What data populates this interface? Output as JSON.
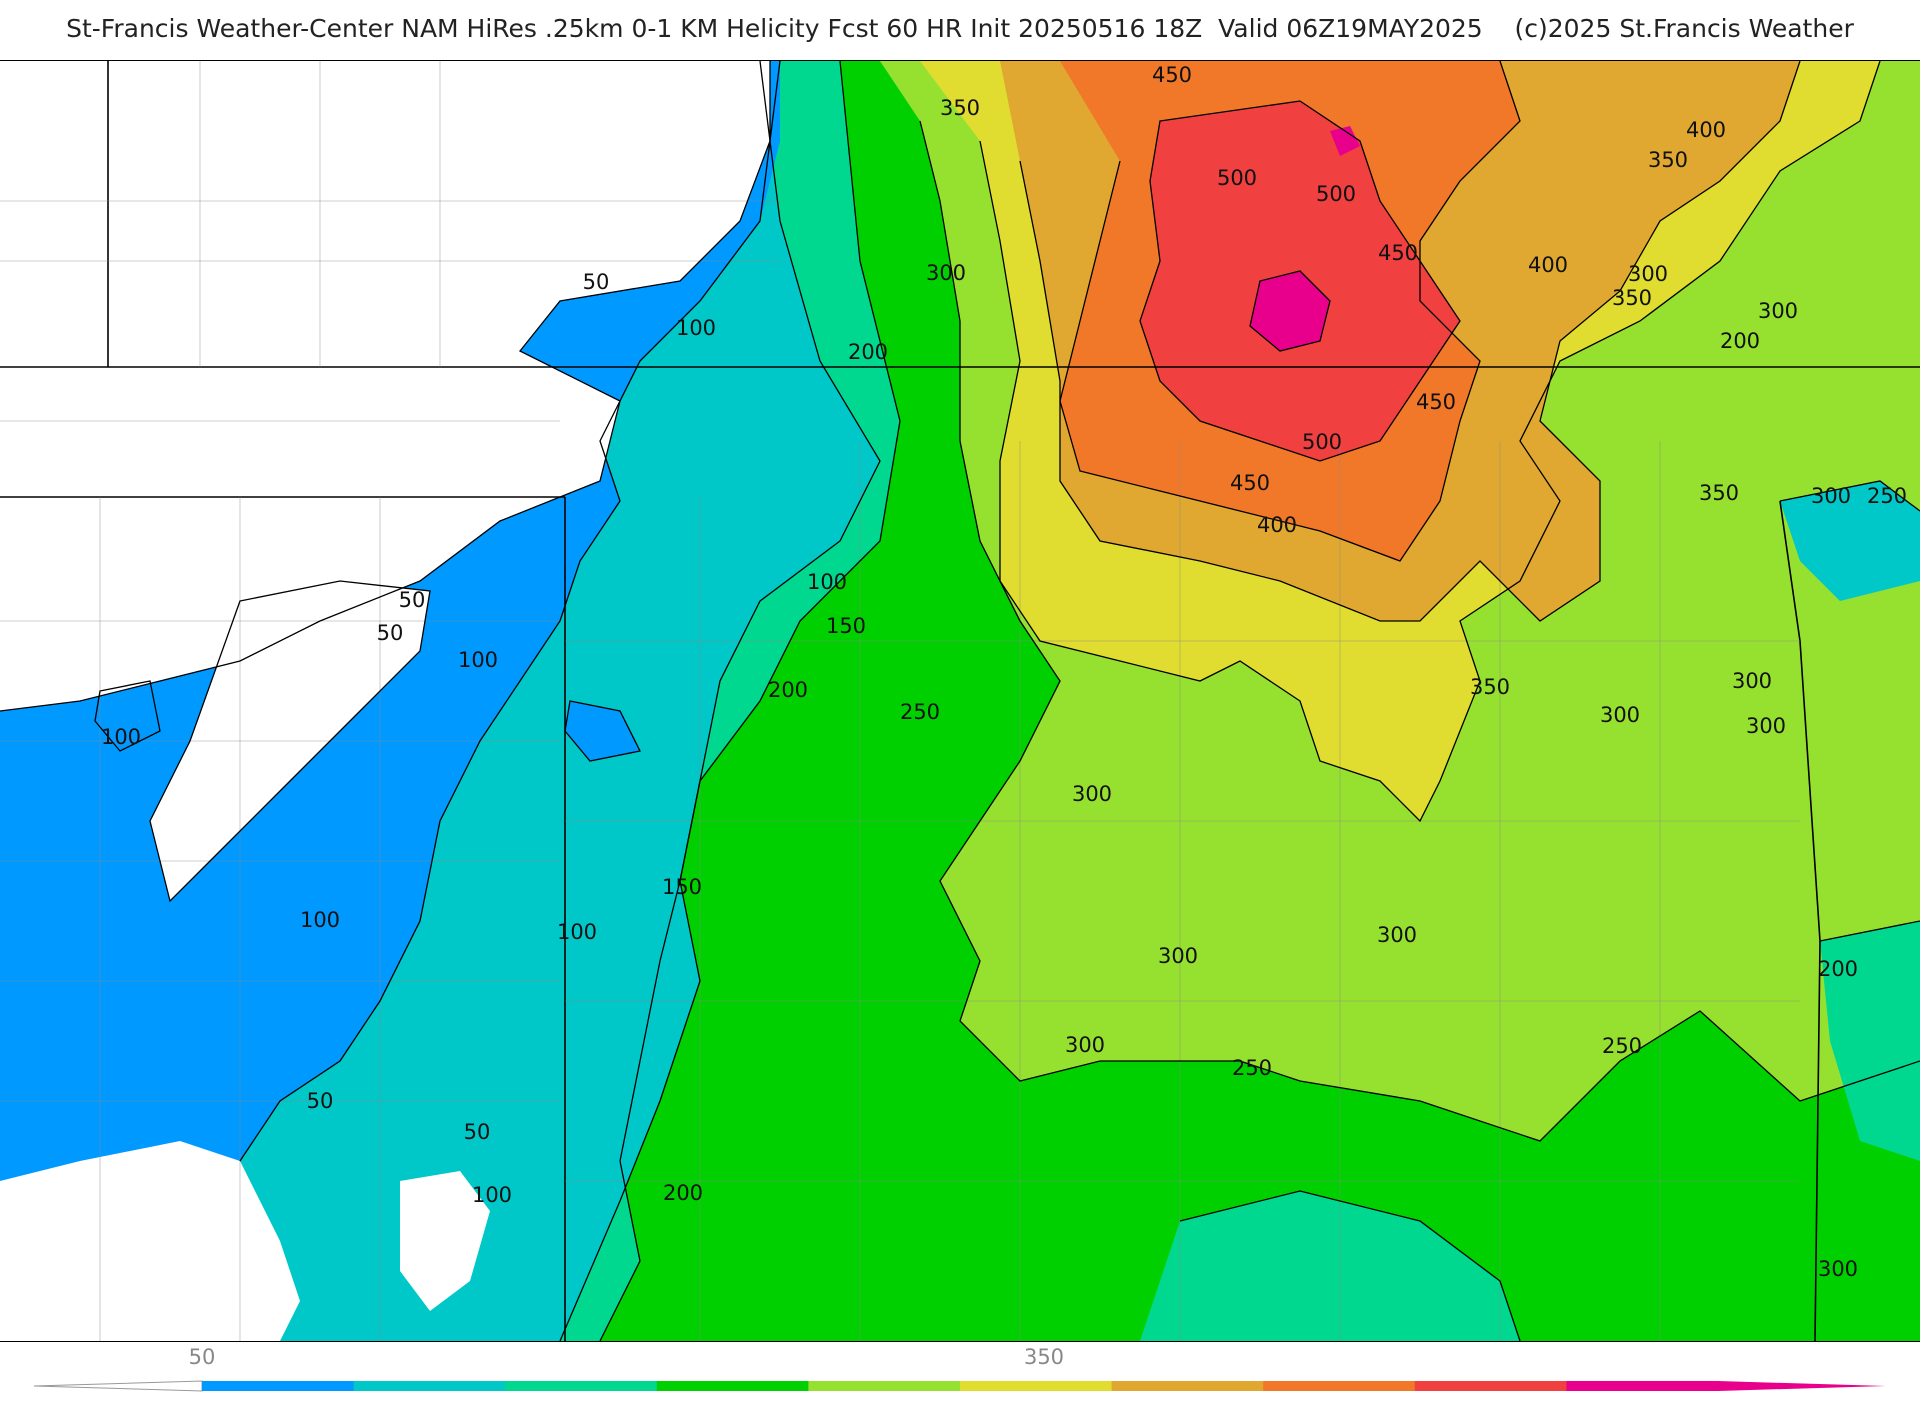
{
  "title": "St-Francis Weather-Center NAM HiRes .25km 0-1 KM Helicity Fcst 60 HR Init 20250516 18Z  Valid 06Z19MAY2025    (c)2025 St.Francis Weather",
  "contour_labels": [
    "450",
    "350",
    "500",
    "500",
    "450",
    "400",
    "400",
    "350",
    "300",
    "350",
    "300",
    "300",
    "200",
    "200",
    "50",
    "100",
    "450",
    "500",
    "450",
    "400",
    "350",
    "300",
    "250",
    "100",
    "50",
    "50",
    "100",
    "150",
    "200",
    "250",
    "100",
    "350",
    "300",
    "300",
    "300",
    "300",
    "300",
    "300",
    "150",
    "100",
    "100",
    "300",
    "300",
    "250",
    "250",
    "200",
    "200",
    "100",
    "50",
    "50"
  ],
  "colorbar": {
    "tick_labels": [
      "50",
      "350"
    ],
    "colors": [
      "#0099ff",
      "#00c8c8",
      "#00d890",
      "#00d000",
      "#96e030",
      "#e0dc30",
      "#e0a830",
      "#f07828",
      "#f04040",
      "#e8008c"
    ]
  },
  "colors": {
    "lt50": "#0099ff",
    "c100": "#00c8c8",
    "c150": "#00d890",
    "c200": "#00d000",
    "c300": "#96e030",
    "c350": "#e0dc30",
    "c400": "#e0a830",
    "c450": "#f07828",
    "c500": "#f04040",
    "c550": "#e8008c"
  }
}
